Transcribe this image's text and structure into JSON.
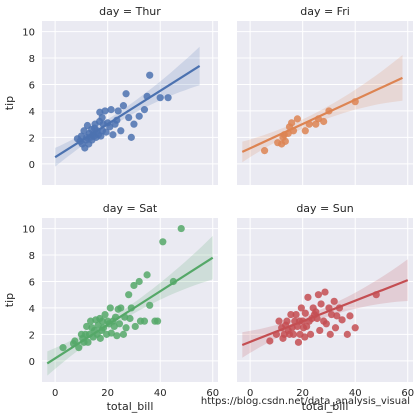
{
  "chart_data": {
    "type": "scatter",
    "xlabel": "total_bill",
    "ylabel": "tip",
    "xlim": [
      -5,
      62
    ],
    "ylim": [
      -1.6,
      10.8
    ],
    "xticks": [
      0,
      20,
      40,
      60
    ],
    "yticks": [
      0,
      2,
      4,
      6,
      8,
      10
    ],
    "grid": true,
    "background": "#EAEAF2",
    "panels": [
      {
        "title": "day = Thur",
        "color": "#4C72B0",
        "fit": {
          "x0": 0,
          "y0": 0.5,
          "x1": 55,
          "y1": 7.4
        },
        "points": [
          [
            8.5,
            1.9
          ],
          [
            9.5,
            1.7
          ],
          [
            10,
            2.1
          ],
          [
            10.3,
            1.5
          ],
          [
            11,
            2.5
          ],
          [
            11.3,
            1.2
          ],
          [
            11.8,
            1.8
          ],
          [
            12,
            2.0
          ],
          [
            12.3,
            2.9
          ],
          [
            12.8,
            1.5
          ],
          [
            13,
            2.3
          ],
          [
            13.5,
            2.0
          ],
          [
            13.9,
            2.6
          ],
          [
            14,
            1.8
          ],
          [
            14.4,
            2.2
          ],
          [
            14.8,
            2.1
          ],
          [
            15,
            2.7
          ],
          [
            15.2,
            3.0
          ],
          [
            15.6,
            2.0
          ],
          [
            16,
            2.5
          ],
          [
            16.5,
            2.2
          ],
          [
            16.9,
            3.2
          ],
          [
            17,
            3.9
          ],
          [
            17.4,
            2.1
          ],
          [
            17.9,
            3.5
          ],
          [
            18,
            2.5
          ],
          [
            18.3,
            3.0
          ],
          [
            19,
            4.0
          ],
          [
            19.4,
            2.4
          ],
          [
            20,
            3.1
          ],
          [
            20.8,
            2.8
          ],
          [
            21.3,
            4.1
          ],
          [
            22,
            2.2
          ],
          [
            22.8,
            3.0
          ],
          [
            23.5,
            3.3
          ],
          [
            24,
            4.0
          ],
          [
            25,
            2.5
          ],
          [
            26,
            4.4
          ],
          [
            27,
            5.3
          ],
          [
            28,
            3.5
          ],
          [
            29,
            2.0
          ],
          [
            30,
            3.0
          ],
          [
            32,
            3.6
          ],
          [
            34,
            4.1
          ],
          [
            35,
            5.1
          ],
          [
            36,
            6.7
          ],
          [
            40,
            5.0
          ],
          [
            43,
            5.0
          ]
        ]
      },
      {
        "title": "day = Fri",
        "color": "#DD8452",
        "fit": {
          "x0": -3,
          "y0": 0.9,
          "x1": 58,
          "y1": 6.5
        },
        "points": [
          [
            5.5,
            1.0
          ],
          [
            10.5,
            1.6
          ],
          [
            12,
            1.5
          ],
          [
            12.5,
            2.0
          ],
          [
            13,
            2.2
          ],
          [
            13.4,
            1.7
          ],
          [
            14.5,
            2.3
          ],
          [
            15,
            2.8
          ],
          [
            15.8,
            3.1
          ],
          [
            16.5,
            2.5
          ],
          [
            18,
            3.4
          ],
          [
            21,
            2.5
          ],
          [
            22.5,
            3.0
          ],
          [
            25,
            3.0
          ],
          [
            26,
            3.4
          ],
          [
            28,
            3.2
          ],
          [
            30,
            4.0
          ],
          [
            40,
            4.7
          ]
        ]
      },
      {
        "title": "day = Sat",
        "color": "#55A868",
        "fit": {
          "x0": -3,
          "y0": -0.2,
          "x1": 60,
          "y1": 7.8
        },
        "points": [
          [
            3,
            1.0
          ],
          [
            7,
            1.3
          ],
          [
            7.5,
            1.5
          ],
          [
            9,
            1.0
          ],
          [
            10,
            2.0
          ],
          [
            10.5,
            1.7
          ],
          [
            11,
            1.4
          ],
          [
            11.5,
            2.0
          ],
          [
            12,
            2.6
          ],
          [
            12.5,
            1.4
          ],
          [
            13,
            2.0
          ],
          [
            13.5,
            3.0
          ],
          [
            14,
            2.5
          ],
          [
            14.5,
            1.8
          ],
          [
            15,
            2.3
          ],
          [
            15.5,
            3.1
          ],
          [
            16,
            2.0
          ],
          [
            16.4,
            2.7
          ],
          [
            17,
            3.2
          ],
          [
            17.2,
            1.7
          ],
          [
            17.7,
            2.3
          ],
          [
            18,
            3.0
          ],
          [
            18.4,
            2.5
          ],
          [
            19,
            3.5
          ],
          [
            19.6,
            2.0
          ],
          [
            20,
            3.0
          ],
          [
            20.5,
            2.8
          ],
          [
            21,
            4.0
          ],
          [
            21.4,
            2.1
          ],
          [
            22,
            3.0
          ],
          [
            22.5,
            2.6
          ],
          [
            23,
            3.3
          ],
          [
            23.5,
            1.9
          ],
          [
            24,
            3.9
          ],
          [
            24.5,
            2.8
          ],
          [
            25,
            4.0
          ],
          [
            26,
            2.0
          ],
          [
            26.5,
            3.3
          ],
          [
            27,
            2.5
          ],
          [
            28,
            5.0
          ],
          [
            28.5,
            3.2
          ],
          [
            29,
            4.0
          ],
          [
            30,
            5.7
          ],
          [
            30.5,
            2.6
          ],
          [
            32,
            6.0
          ],
          [
            32.5,
            3.0
          ],
          [
            34,
            3.0
          ],
          [
            35,
            6.5
          ],
          [
            36,
            4.2
          ],
          [
            38,
            3.0
          ],
          [
            39,
            3.0
          ],
          [
            41,
            9.0
          ],
          [
            45,
            6.0
          ],
          [
            48,
            10.0
          ]
        ]
      },
      {
        "title": "day = Sun",
        "color": "#C44E52",
        "fit": {
          "x0": -3,
          "y0": 1.2,
          "x1": 60,
          "y1": 6.1
        },
        "points": [
          [
            7.5,
            1.5
          ],
          [
            10,
            2.0
          ],
          [
            11,
            3.0
          ],
          [
            12,
            2.5
          ],
          [
            12.5,
            1.7
          ],
          [
            13,
            2.0
          ],
          [
            13.5,
            2.7
          ],
          [
            14,
            3.0
          ],
          [
            14.5,
            2.3
          ],
          [
            15,
            2.0
          ],
          [
            15.5,
            3.5
          ],
          [
            16,
            2.5
          ],
          [
            16.5,
            2.0
          ],
          [
            17,
            3.0
          ],
          [
            17.5,
            3.5
          ],
          [
            18,
            2.6
          ],
          [
            18.4,
            1.4
          ],
          [
            18.8,
            3.0
          ],
          [
            19,
            2.0
          ],
          [
            19.5,
            4.0
          ],
          [
            20,
            3.0
          ],
          [
            20.3,
            2.5
          ],
          [
            20.8,
            1.8
          ],
          [
            21,
            3.6
          ],
          [
            21.5,
            2.6
          ],
          [
            22,
            4.8
          ],
          [
            22.5,
            3.0
          ],
          [
            23,
            2.0
          ],
          [
            23.5,
            3.2
          ],
          [
            24,
            4.0
          ],
          [
            24.5,
            3.5
          ],
          [
            25,
            3.7
          ],
          [
            25.5,
            3.2
          ],
          [
            26,
            5.0
          ],
          [
            26.5,
            2.3
          ],
          [
            27,
            4.3
          ],
          [
            28,
            3.0
          ],
          [
            28.5,
            5.2
          ],
          [
            29,
            2.8
          ],
          [
            30,
            4.0
          ],
          [
            30.5,
            2.0
          ],
          [
            31,
            3.5
          ],
          [
            32,
            4.5
          ],
          [
            32.5,
            2.5
          ],
          [
            33,
            3.4
          ],
          [
            34,
            4.0
          ],
          [
            35,
            3.1
          ],
          [
            37,
            2.0
          ],
          [
            38,
            3.4
          ],
          [
            40,
            2.5
          ],
          [
            48,
            5.0
          ]
        ]
      }
    ]
  },
  "watermark": "https://blog.csdn.net/data_analysis_visual"
}
